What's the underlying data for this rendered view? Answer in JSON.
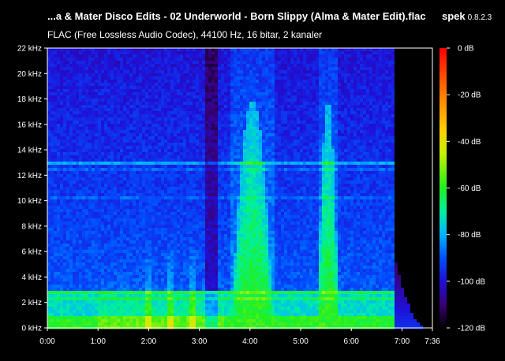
{
  "header": {
    "file_title": "...a & Mater Disco Edits - 02 Underworld - Born Slippy (Alma & Mater Edit).flac",
    "app_name": "spek",
    "app_version": "0.8.2.3",
    "file_info": "FLAC (Free Lossless Audio Codec), 44100 Hz, 16 bitar, 2 kanaler"
  },
  "chart_data": {
    "type": "heatmap",
    "title": "...a & Mater Disco Edits - 02 Underworld - Born Slippy (Alma & Mater Edit).flac",
    "subtitle": "FLAC (Free Lossless Audio Codec), 44100 Hz, 16 bitar, 2 kanaler",
    "x_range_seconds": [
      0,
      456
    ],
    "x_ticks": [
      {
        "t": 0,
        "label": "0:00"
      },
      {
        "t": 60,
        "label": "1:00"
      },
      {
        "t": 120,
        "label": "2:00"
      },
      {
        "t": 180,
        "label": "3:00"
      },
      {
        "t": 240,
        "label": "4:00"
      },
      {
        "t": 300,
        "label": "5:00"
      },
      {
        "t": 360,
        "label": "6:00"
      },
      {
        "t": 420,
        "label": "7:00"
      },
      {
        "t": 456,
        "label": "7:36"
      }
    ],
    "y_range_khz": [
      0,
      22
    ],
    "y_ticks": [
      {
        "v": 0,
        "label": "0 kHz"
      },
      {
        "v": 2,
        "label": "2 kHz"
      },
      {
        "v": 4,
        "label": "4 kHz"
      },
      {
        "v": 6,
        "label": "6 kHz"
      },
      {
        "v": 8,
        "label": "8 kHz"
      },
      {
        "v": 10,
        "label": "10 kHz"
      },
      {
        "v": 12,
        "label": "12 kHz"
      },
      {
        "v": 14,
        "label": "14 kHz"
      },
      {
        "v": 16,
        "label": "16 kHz"
      },
      {
        "v": 18,
        "label": "18 kHz"
      },
      {
        "v": 20,
        "label": "20 kHz"
      },
      {
        "v": 22,
        "label": "22 kHz"
      }
    ],
    "colorbar_range_db": [
      -120,
      0
    ],
    "colorbar_ticks": [
      {
        "v": 0,
        "label": "0 dB"
      },
      {
        "v": -20,
        "label": "-20 dB"
      },
      {
        "v": -40,
        "label": "-40 dB"
      },
      {
        "v": -60,
        "label": "-60 dB"
      },
      {
        "v": -80,
        "label": "-80 dB"
      },
      {
        "v": -100,
        "label": "-100 dB"
      },
      {
        "v": -120,
        "label": "-120 dB"
      }
    ],
    "colormap": [
      {
        "db": -120,
        "color": "#000000"
      },
      {
        "db": -110,
        "color": "#3a0078"
      },
      {
        "db": -100,
        "color": "#1f10d8"
      },
      {
        "db": -90,
        "color": "#0050ff"
      },
      {
        "db": -80,
        "color": "#00b4ff"
      },
      {
        "db": -70,
        "color": "#00f0a0"
      },
      {
        "db": -60,
        "color": "#20f020"
      },
      {
        "db": -45,
        "color": "#c8f000"
      },
      {
        "db": -35,
        "color": "#ffd000"
      },
      {
        "db": -15,
        "color": "#ff6000"
      },
      {
        "db": 0,
        "color": "#ff0000"
      }
    ],
    "audio_end_seconds": 410,
    "loud_sections": [
      {
        "start_s": 218,
        "end_s": 268,
        "top_khz": 18
      },
      {
        "start_s": 320,
        "end_s": 345,
        "top_khz": 18
      }
    ]
  }
}
